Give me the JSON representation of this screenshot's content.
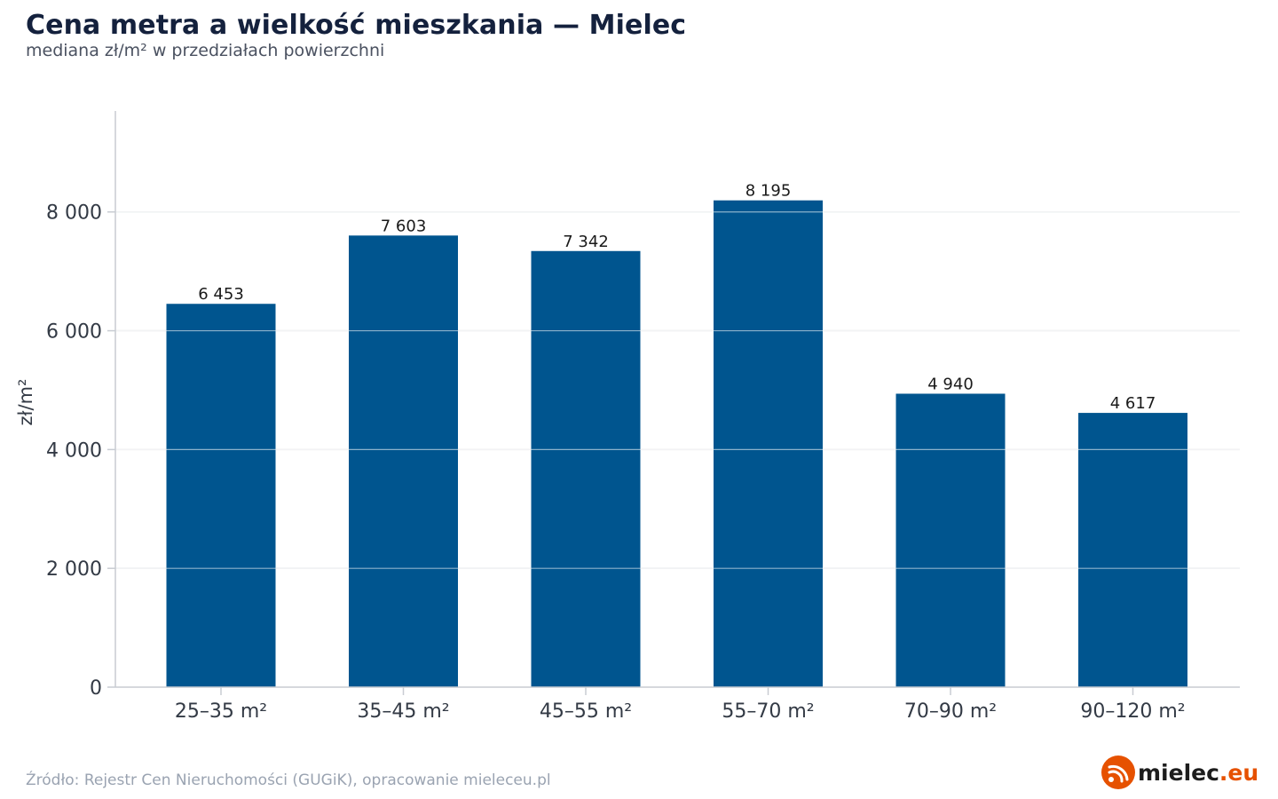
{
  "title": "Cena metra a wielkość mieszkania — Mielec",
  "subtitle": "mediana zł/m² w przedziałach powierzchni",
  "source": "Źródło: Rejestr Cen Nieruchomości (GUGiK), opracowanie mieleceu.pl",
  "logo": {
    "name": "mielec",
    "tld": ".eu",
    "icon": "wifi-signal-icon",
    "accent": "#e65100"
  },
  "colors": {
    "bar": "#00558f",
    "grid": "#e3e5e8",
    "axis": "#c8ccd2"
  },
  "chart_data": {
    "type": "bar",
    "title": "Cena metra a wielkość mieszkania — Mielec",
    "subtitle": "mediana zł/m² w przedziałach powierzchni",
    "xlabel": "",
    "ylabel": "zł/m²",
    "categories": [
      "25–35 m²",
      "35–45 m²",
      "45–55 m²",
      "55–70 m²",
      "70–90 m²",
      "90–120 m²"
    ],
    "values": [
      6453,
      7603,
      7342,
      8195,
      4940,
      4617
    ],
    "value_labels": [
      "6 453",
      "7 603",
      "7 342",
      "8 195",
      "4 940",
      "4 617"
    ],
    "yticks": [
      0,
      2000,
      4000,
      6000,
      8000
    ],
    "ytick_labels": [
      "0",
      "2 000",
      "4 000",
      "6 000",
      "8 000"
    ],
    "ylim": [
      0,
      9700
    ],
    "grid": true,
    "legend": "none"
  }
}
